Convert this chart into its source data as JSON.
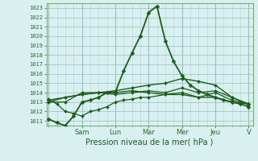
{
  "title": "Pression niveau de la mer( hPa )",
  "background_color": "#cce8e8",
  "plot_bg": "#d8f0f0",
  "grid_color_major": "#9dbdbd",
  "grid_color_minor": "#b8d4d4",
  "ylim": [
    1010.5,
    1023.5
  ],
  "yticks": [
    1011,
    1012,
    1013,
    1014,
    1015,
    1016,
    1017,
    1018,
    1019,
    1020,
    1021,
    1022,
    1023
  ],
  "day_labels": [
    "Sam",
    "Lun",
    "Mar",
    "Mer",
    "Jeu",
    "V"
  ],
  "day_tick_positions": [
    8,
    16,
    24,
    32,
    40,
    48
  ],
  "n_x_points": 49,
  "series": [
    {
      "x": [
        0,
        2,
        4,
        6,
        8,
        10,
        12,
        14,
        16,
        18,
        20,
        22,
        24,
        26,
        28,
        30,
        32,
        34,
        36,
        38,
        40,
        42,
        44,
        46,
        48
      ],
      "y": [
        1011.2,
        1010.8,
        1010.5,
        1011.5,
        1013.0,
        1013.2,
        1013.5,
        1014.0,
        1014.0,
        1016.3,
        1018.2,
        1020.0,
        1022.5,
        1023.2,
        1019.5,
        1017.3,
        1015.8,
        1014.8,
        1014.2,
        1013.8,
        1013.5,
        1013.2,
        1013.0,
        1012.8,
        1012.5
      ],
      "color": "#1a5c1a",
      "lw": 1.3,
      "marker": "D",
      "markersize": 2.5
    },
    {
      "x": [
        0,
        4,
        8,
        12,
        16,
        20,
        24,
        28,
        32,
        36,
        40,
        44,
        48
      ],
      "y": [
        1013.0,
        1013.5,
        1013.8,
        1014.0,
        1014.2,
        1014.5,
        1014.8,
        1015.0,
        1015.5,
        1015.2,
        1014.8,
        1013.5,
        1012.8
      ],
      "color": "#1a5c1a",
      "lw": 1.0,
      "marker": "D",
      "markersize": 2.0
    },
    {
      "x": [
        0,
        4,
        8,
        12,
        16,
        20,
        24,
        28,
        32,
        36,
        40,
        44,
        48
      ],
      "y": [
        1013.2,
        1013.5,
        1013.8,
        1014.0,
        1014.0,
        1014.2,
        1014.0,
        1013.8,
        1013.8,
        1013.5,
        1013.5,
        1013.0,
        1012.8
      ],
      "color": "#1a5c1a",
      "lw": 1.0,
      "marker": "D",
      "markersize": 2.0
    },
    {
      "x": [
        0,
        2,
        4,
        6,
        8,
        10,
        12,
        14,
        16,
        18,
        20,
        22,
        24,
        28,
        32,
        36,
        40,
        44,
        48
      ],
      "y": [
        1013.3,
        1012.8,
        1012.0,
        1011.8,
        1011.5,
        1012.0,
        1012.2,
        1012.5,
        1013.0,
        1013.2,
        1013.3,
        1013.5,
        1013.5,
        1013.8,
        1014.0,
        1013.5,
        1014.0,
        1013.2,
        1012.8
      ],
      "color": "#1a5c1a",
      "lw": 0.9,
      "marker": "D",
      "markersize": 2.0
    },
    {
      "x": [
        0,
        4,
        8,
        12,
        16,
        20,
        24,
        28,
        32,
        36,
        40,
        44,
        48
      ],
      "y": [
        1013.0,
        1013.0,
        1014.0,
        1014.0,
        1013.8,
        1014.0,
        1014.2,
        1014.0,
        1014.5,
        1014.0,
        1014.2,
        1013.5,
        1012.7
      ],
      "color": "#1a5c1a",
      "lw": 0.9,
      "marker": "D",
      "markersize": 2.0
    }
  ],
  "xlim": [
    -0.5,
    49
  ],
  "line_color": "#1a5c1a",
  "tick_label_color": "#2a6c2a",
  "spine_color": "#7aaa7a",
  "xlabel_fontsize": 7,
  "ytick_fontsize": 5,
  "xtick_fontsize": 6
}
